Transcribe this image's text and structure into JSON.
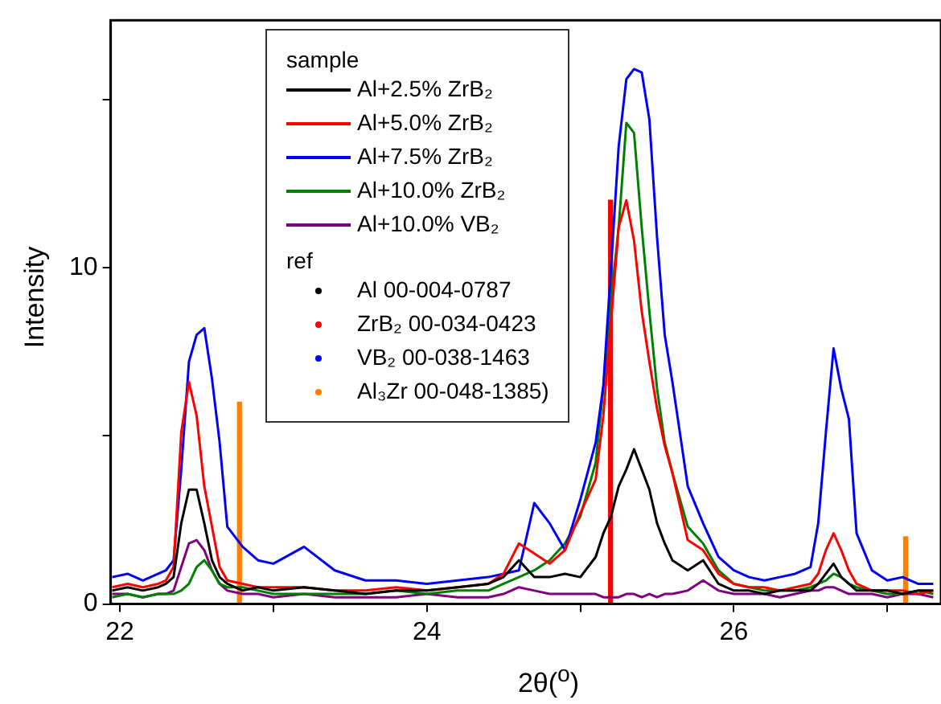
{
  "chart_data": {
    "type": "line",
    "xlabel": "2θ($^{o}$)",
    "ylabel": "Intensity",
    "legend_title": "sample",
    "annotations": [
      "ref"
    ],
    "legend": "top left",
    "grid": false,
    "xlim": [
      21.94,
      27.35
    ],
    "xticks": [
      22,
      {
        "value": 23,
        "label": null
      },
      24,
      {
        "value": 25,
        "label": null
      },
      26,
      {
        "value": 27,
        "label": null
      }
    ],
    "ylim": [
      0,
      17.35
    ],
    "yticks": [
      0,
      {
        "value": 5,
        "label": null
      },
      10,
      {
        "value": 15,
        "label": null
      }
    ],
    "series": [
      {
        "name": "Al+2.5% ZrB₂",
        "color": "#000000",
        "x": [
          21.95,
          22.05,
          22.15,
          22.25,
          22.3,
          22.35,
          22.4,
          22.45,
          22.5,
          22.55,
          22.6,
          22.65,
          22.7,
          22.8,
          22.9,
          23.0,
          23.2,
          23.4,
          23.6,
          23.8,
          24.0,
          24.2,
          24.4,
          24.5,
          24.6,
          24.7,
          24.8,
          24.9,
          25.0,
          25.1,
          25.15,
          25.2,
          25.25,
          25.3,
          25.35,
          25.4,
          25.45,
          25.5,
          25.55,
          25.6,
          25.7,
          25.8,
          25.9,
          26.0,
          26.1,
          26.2,
          26.3,
          26.4,
          26.5,
          26.55,
          26.6,
          26.65,
          26.7,
          26.75,
          26.8,
          26.9,
          27.0,
          27.1,
          27.2,
          27.3
        ],
        "values": [
          0.4,
          0.5,
          0.4,
          0.5,
          0.6,
          0.8,
          2.4,
          3.4,
          3.4,
          2.4,
          1.3,
          0.8,
          0.6,
          0.4,
          0.5,
          0.4,
          0.5,
          0.4,
          0.3,
          0.4,
          0.4,
          0.5,
          0.6,
          0.8,
          1.3,
          0.8,
          0.8,
          0.9,
          0.8,
          1.4,
          2.1,
          2.6,
          3.5,
          4.0,
          4.6,
          4.0,
          3.4,
          2.4,
          1.8,
          1.3,
          1.0,
          1.3,
          0.6,
          0.4,
          0.4,
          0.3,
          0.4,
          0.4,
          0.4,
          0.6,
          0.9,
          1.2,
          0.8,
          0.6,
          0.4,
          0.4,
          0.4,
          0.3,
          0.4,
          0.4
        ]
      },
      {
        "name": "Al+5.0% ZrB₂",
        "color": "#ff0000",
        "x": [
          21.95,
          22.05,
          22.15,
          22.25,
          22.3,
          22.35,
          22.4,
          22.45,
          22.5,
          22.55,
          22.6,
          22.65,
          22.7,
          22.8,
          22.9,
          23.0,
          23.2,
          23.4,
          23.6,
          23.8,
          24.0,
          24.2,
          24.4,
          24.5,
          24.6,
          24.7,
          24.8,
          24.9,
          25.0,
          25.1,
          25.15,
          25.2,
          25.25,
          25.3,
          25.35,
          25.4,
          25.45,
          25.5,
          25.55,
          25.6,
          25.7,
          25.8,
          25.9,
          26.0,
          26.1,
          26.2,
          26.3,
          26.4,
          26.5,
          26.55,
          26.6,
          26.65,
          26.7,
          26.75,
          26.8,
          26.9,
          27.0,
          27.1,
          27.2,
          27.3
        ],
        "values": [
          0.5,
          0.6,
          0.5,
          0.6,
          0.7,
          1.1,
          5.1,
          6.6,
          5.6,
          3.5,
          2.3,
          1.1,
          0.7,
          0.6,
          0.5,
          0.5,
          0.5,
          0.4,
          0.4,
          0.5,
          0.4,
          0.5,
          0.6,
          0.9,
          1.8,
          1.5,
          1.2,
          1.6,
          2.7,
          3.7,
          5.6,
          8.4,
          11.2,
          12.0,
          10.8,
          8.7,
          7.2,
          5.8,
          4.7,
          3.9,
          1.9,
          1.6,
          0.9,
          0.6,
          0.5,
          0.5,
          0.4,
          0.5,
          0.6,
          0.9,
          1.6,
          2.1,
          1.6,
          1.0,
          0.6,
          0.4,
          0.4,
          0.4,
          0.3,
          0.4
        ]
      },
      {
        "name": "Al+7.5% ZrB₂",
        "color": "#0000ff",
        "x": [
          21.95,
          22.05,
          22.15,
          22.25,
          22.3,
          22.35,
          22.4,
          22.45,
          22.5,
          22.55,
          22.6,
          22.65,
          22.7,
          22.8,
          22.9,
          23.0,
          23.2,
          23.4,
          23.6,
          23.8,
          24.0,
          24.2,
          24.4,
          24.5,
          24.6,
          24.7,
          24.8,
          24.9,
          25.0,
          25.1,
          25.15,
          25.2,
          25.25,
          25.3,
          25.35,
          25.4,
          25.45,
          25.5,
          25.55,
          25.6,
          25.7,
          25.8,
          25.9,
          26.0,
          26.1,
          26.2,
          26.3,
          26.4,
          26.5,
          26.55,
          26.6,
          26.65,
          26.7,
          26.75,
          26.8,
          26.9,
          27.0,
          27.1,
          27.2,
          27.3
        ],
        "values": [
          0.8,
          0.9,
          0.7,
          0.9,
          1.0,
          1.3,
          4.0,
          7.2,
          8.0,
          8.2,
          6.7,
          4.8,
          2.3,
          1.7,
          1.3,
          1.2,
          1.7,
          1.0,
          0.7,
          0.7,
          0.6,
          0.7,
          0.8,
          0.9,
          1.0,
          3.0,
          2.4,
          1.6,
          3.1,
          4.8,
          6.5,
          10.0,
          13.6,
          15.6,
          15.9,
          15.8,
          14.4,
          10.9,
          8.0,
          6.6,
          3.5,
          2.4,
          1.4,
          1.0,
          0.8,
          0.7,
          0.8,
          0.9,
          1.1,
          2.4,
          5.1,
          7.6,
          6.4,
          5.5,
          2.1,
          1.0,
          0.7,
          0.8,
          0.6,
          0.6
        ]
      },
      {
        "name": "Al+10.0% ZrB₂",
        "color": "#008000",
        "x": [
          21.95,
          22.05,
          22.15,
          22.25,
          22.3,
          22.35,
          22.4,
          22.45,
          22.5,
          22.55,
          22.6,
          22.65,
          22.7,
          22.8,
          22.9,
          23.0,
          23.2,
          23.4,
          23.6,
          23.8,
          24.0,
          24.2,
          24.4,
          24.5,
          24.6,
          24.7,
          24.8,
          24.9,
          25.0,
          25.1,
          25.15,
          25.2,
          25.25,
          25.3,
          25.35,
          25.4,
          25.45,
          25.5,
          25.55,
          25.6,
          25.7,
          25.8,
          25.9,
          26.0,
          26.1,
          26.2,
          26.3,
          26.4,
          26.5,
          26.55,
          26.6,
          26.65,
          26.7,
          26.75,
          26.8,
          26.9,
          27.0,
          27.1,
          27.2,
          27.3
        ],
        "values": [
          0.2,
          0.3,
          0.2,
          0.3,
          0.3,
          0.3,
          0.4,
          0.6,
          1.1,
          1.3,
          1.0,
          0.6,
          0.5,
          0.5,
          0.4,
          0.3,
          0.3,
          0.3,
          0.3,
          0.4,
          0.3,
          0.4,
          0.4,
          0.6,
          0.8,
          1.0,
          1.3,
          1.8,
          2.6,
          4.2,
          6.4,
          9.0,
          11.2,
          14.3,
          14.0,
          11.2,
          8.7,
          6.4,
          4.8,
          3.9,
          2.3,
          1.8,
          1.0,
          0.6,
          0.5,
          0.4,
          0.4,
          0.4,
          0.5,
          0.6,
          0.7,
          0.9,
          0.8,
          0.6,
          0.5,
          0.4,
          0.3,
          0.3,
          0.4,
          0.3
        ]
      },
      {
        "name": "Al+10.0% VB₂",
        "color": "#800080",
        "x": [
          21.95,
          22.05,
          22.15,
          22.25,
          22.3,
          22.35,
          22.4,
          22.45,
          22.5,
          22.55,
          22.6,
          22.65,
          22.7,
          22.8,
          22.9,
          23.0,
          23.2,
          23.4,
          23.6,
          23.8,
          24.0,
          24.2,
          24.4,
          24.5,
          24.6,
          24.7,
          24.8,
          24.9,
          25.0,
          25.1,
          25.15,
          25.2,
          25.25,
          25.3,
          25.35,
          25.4,
          25.45,
          25.5,
          25.55,
          25.6,
          25.7,
          25.8,
          25.9,
          26.0,
          26.1,
          26.2,
          26.3,
          26.4,
          26.5,
          26.55,
          26.6,
          26.65,
          26.7,
          26.75,
          26.8,
          26.9,
          27.0,
          27.1,
          27.2,
          27.3
        ],
        "values": [
          0.3,
          0.3,
          0.2,
          0.3,
          0.3,
          0.4,
          1.1,
          1.8,
          1.9,
          1.6,
          1.0,
          0.6,
          0.4,
          0.3,
          0.3,
          0.2,
          0.3,
          0.2,
          0.2,
          0.2,
          0.3,
          0.2,
          0.2,
          0.3,
          0.5,
          0.4,
          0.3,
          0.3,
          0.3,
          0.3,
          0.2,
          0.2,
          0.2,
          0.3,
          0.3,
          0.2,
          0.3,
          0.2,
          0.3,
          0.3,
          0.4,
          0.7,
          0.4,
          0.3,
          0.3,
          0.3,
          0.2,
          0.3,
          0.4,
          0.4,
          0.5,
          0.5,
          0.4,
          0.3,
          0.3,
          0.3,
          0.2,
          0.3,
          0.3,
          0.2
        ]
      },
      {
        "name": "Al 00-004-0787",
        "color": "#000000",
        "type": "bar"
      },
      {
        "name": "ZrB₂ 00-034-0423",
        "color": "#ff0000",
        "type": "bar",
        "x": [
          25.21
        ],
        "values": [
          12.0
        ]
      },
      {
        "name": "VB₂ 00-038-1463",
        "color": "#0000ff",
        "type": "bar"
      },
      {
        "name": "Al₃Zr 00-048-1385)",
        "color": "#ff8000",
        "type": "bar",
        "x": [
          22.74,
          27.08
        ],
        "values": [
          6.0,
          2.0
        ]
      }
    ]
  }
}
